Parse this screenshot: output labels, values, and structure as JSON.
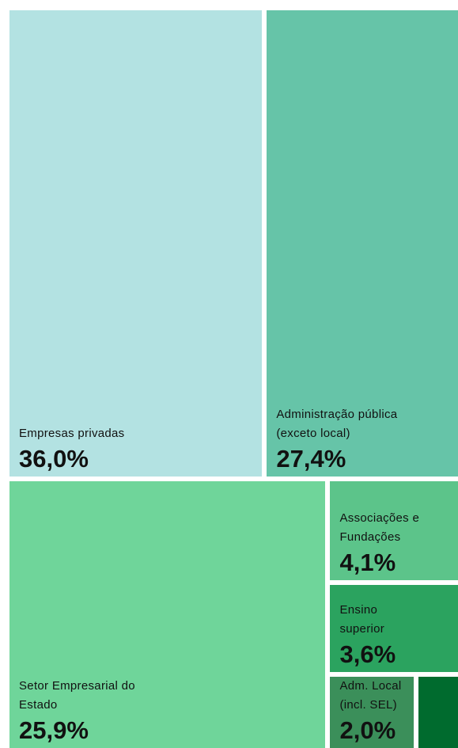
{
  "chart_data": {
    "type": "treemap",
    "categories": [
      "Empresas privadas",
      "Administração pública (exceto local)",
      "Setor Empresarial do Estado",
      "Associações e Fundações",
      "Ensino superior",
      "Adm. Local (incl. SEL)",
      null
    ],
    "values": [
      36.0,
      27.4,
      25.9,
      4.1,
      3.6,
      2.0,
      1.0
    ],
    "value_labels": [
      "36,0%",
      "27,4%",
      "25,9%",
      "4,1%",
      "3,6%",
      "2,0%",
      null
    ],
    "colors": [
      "#b3e2e2",
      "#66c4a8",
      "#6fd59a",
      "#5cc48a",
      "#2ba35f",
      "#3b8f5a",
      "#006b2e"
    ]
  }
}
